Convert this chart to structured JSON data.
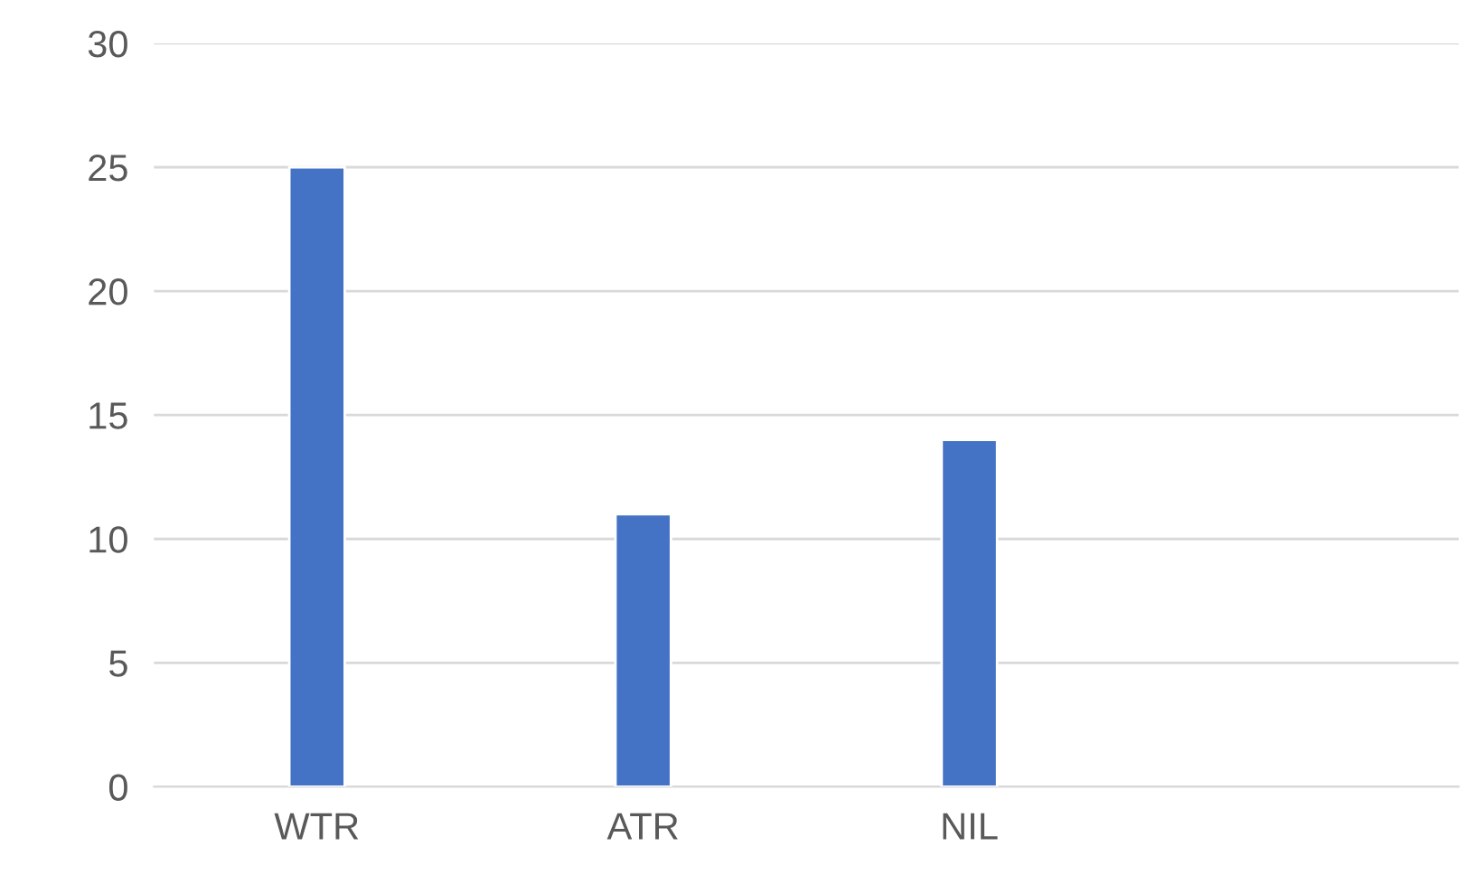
{
  "chart_data": {
    "type": "bar",
    "categories": [
      "WTR",
      "ATR",
      "NIL",
      null
    ],
    "values": [
      25,
      11,
      14,
      null
    ],
    "color": "#4472c4",
    "ylim": [
      0,
      30
    ],
    "yticks": [
      0,
      5,
      10,
      15,
      20,
      25,
      30
    ],
    "grid": "y",
    "legend": false
  }
}
